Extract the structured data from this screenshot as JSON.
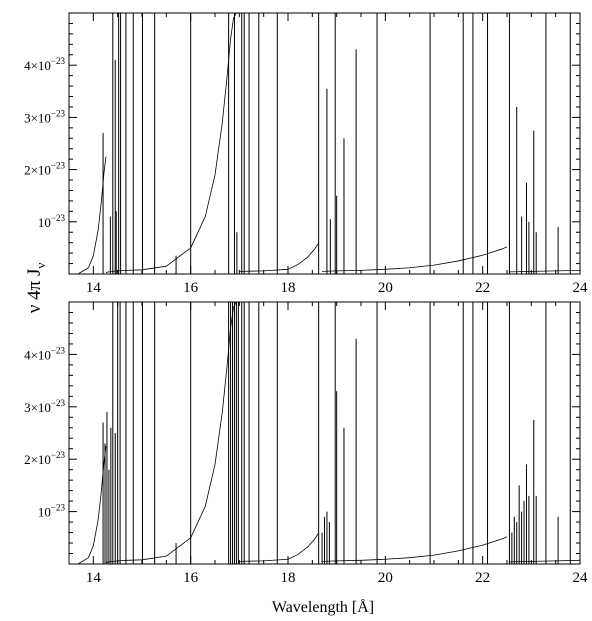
{
  "figure": {
    "ylabel": "ν 4π J",
    "ylabel_sub": "ν",
    "xlabel": "Wavelength [Å]"
  },
  "chart_data": [
    {
      "type": "line",
      "panel": "top",
      "xlabel": "",
      "ylabel": "ν 4π Jν",
      "xlim": [
        13.5,
        24.0
      ],
      "ylim": [
        0,
        5e-23
      ],
      "x_ticks": [
        14,
        16,
        18,
        20,
        22,
        24
      ],
      "x_tick_labels": [
        "14",
        "16",
        "18",
        "20",
        "22",
        "24"
      ],
      "y_ticks": [
        1e-23,
        2e-23,
        3e-23,
        4e-23
      ],
      "y_tick_labels": [
        {
          "mant": "10",
          "exp": "−23"
        },
        {
          "mant": "2×10",
          "exp": "−23"
        },
        {
          "mant": "3×10",
          "exp": "−23"
        },
        {
          "mant": "4×10",
          "exp": "−23"
        }
      ],
      "continuum_segments": [
        {
          "x": [
            13.7,
            13.9,
            14.0,
            14.1,
            14.16,
            14.22,
            14.26
          ],
          "y": [
            1e-25,
            1.2e-24,
            3.5e-24,
            8.5e-24,
            1.35e-23,
            1.95e-23,
            2.25e-23
          ]
        },
        {
          "x": [
            14.26,
            14.32,
            14.4,
            14.5,
            14.7,
            15.0,
            15.5,
            16.0,
            16.3,
            16.5,
            16.65,
            16.75,
            16.82,
            16.88,
            16.94
          ],
          "y": [
            3e-25,
            4e-25,
            5e-25,
            6e-25,
            7e-25,
            8e-25,
            1.5e-24,
            5e-24,
            1.1e-23,
            1.9e-23,
            2.9e-23,
            3.8e-23,
            4.5e-23,
            4.9e-23,
            5e-23
          ]
        },
        {
          "x": [
            17.0,
            17.5,
            18.0,
            18.2,
            18.4,
            18.55,
            18.62
          ],
          "y": [
            5e-25,
            6e-25,
            9e-25,
            1.8e-24,
            3.2e-24,
            4.8e-24,
            5.8e-24
          ]
        },
        {
          "x": [
            18.7,
            19.0,
            19.5,
            20.0,
            20.5,
            21.0,
            21.5,
            22.0,
            22.2,
            22.4,
            22.5
          ],
          "y": [
            5e-25,
            6e-25,
            7e-25,
            9e-25,
            1.2e-24,
            1.7e-24,
            2.5e-24,
            3.6e-24,
            4.2e-24,
            4.8e-24,
            5.2e-24
          ]
        },
        {
          "x": [
            22.55,
            23.0,
            23.5,
            24.0
          ],
          "y": [
            4e-25,
            5e-25,
            6e-25,
            7e-25
          ]
        }
      ],
      "lines": [
        {
          "x": 14.2,
          "y": 2.7e-23
        },
        {
          "x": 14.35,
          "y": 1.1e-23
        },
        {
          "x": 14.4,
          "y": 5e-23
        },
        {
          "x": 14.45,
          "y": 4.1e-23
        },
        {
          "x": 14.47,
          "y": 1.2e-23
        },
        {
          "x": 14.52,
          "y": 5e-23
        },
        {
          "x": 14.56,
          "y": 5e-23
        },
        {
          "x": 14.67,
          "y": 5e-23
        },
        {
          "x": 14.82,
          "y": 5e-23
        },
        {
          "x": 15.01,
          "y": 5e-23
        },
        {
          "x": 15.26,
          "y": 5e-23
        },
        {
          "x": 15.7,
          "y": 3.5e-24
        },
        {
          "x": 16.0,
          "y": 5e-23
        },
        {
          "x": 16.78,
          "y": 5e-23
        },
        {
          "x": 16.9,
          "y": 5e-23
        },
        {
          "x": 16.95,
          "y": 8e-24
        },
        {
          "x": 17.05,
          "y": 5e-23
        },
        {
          "x": 17.1,
          "y": 5e-23
        },
        {
          "x": 17.2,
          "y": 5e-23
        },
        {
          "x": 17.4,
          "y": 5e-23
        },
        {
          "x": 17.78,
          "y": 5e-23
        },
        {
          "x": 18.63,
          "y": 5e-23
        },
        {
          "x": 18.8,
          "y": 3.55e-23
        },
        {
          "x": 18.87,
          "y": 1.05e-23
        },
        {
          "x": 18.97,
          "y": 5e-23
        },
        {
          "x": 19.0,
          "y": 1.5e-23
        },
        {
          "x": 19.15,
          "y": 2.6e-23
        },
        {
          "x": 19.4,
          "y": 4.3e-23
        },
        {
          "x": 19.83,
          "y": 5e-23
        },
        {
          "x": 20.92,
          "y": 5e-23
        },
        {
          "x": 21.6,
          "y": 5e-23
        },
        {
          "x": 21.8,
          "y": 5e-23
        },
        {
          "x": 22.1,
          "y": 5e-23
        },
        {
          "x": 22.55,
          "y": 5e-23
        },
        {
          "x": 22.7,
          "y": 3.2e-23
        },
        {
          "x": 22.8,
          "y": 1.1e-23
        },
        {
          "x": 22.9,
          "y": 1.75e-23
        },
        {
          "x": 22.95,
          "y": 1e-23
        },
        {
          "x": 23.05,
          "y": 2.75e-23
        },
        {
          "x": 23.1,
          "y": 8e-24
        },
        {
          "x": 23.3,
          "y": 5e-23
        },
        {
          "x": 23.55,
          "y": 9e-24
        },
        {
          "x": 23.8,
          "y": 5e-23
        }
      ]
    },
    {
      "type": "line",
      "panel": "bottom",
      "xlabel": "Wavelength [Å]",
      "ylabel": "ν 4π Jν",
      "xlim": [
        13.5,
        24.0
      ],
      "ylim": [
        0,
        5e-23
      ],
      "x_ticks": [
        14,
        16,
        18,
        20,
        22,
        24
      ],
      "x_tick_labels": [
        "14",
        "16",
        "18",
        "20",
        "22",
        "24"
      ],
      "y_ticks": [
        1e-23,
        2e-23,
        3e-23,
        4e-23
      ],
      "y_tick_labels": [
        {
          "mant": "10",
          "exp": "−23"
        },
        {
          "mant": "2×10",
          "exp": "−23"
        },
        {
          "mant": "3×10",
          "exp": "−23"
        },
        {
          "mant": "4×10",
          "exp": "−23"
        }
      ],
      "continuum_segments": [
        {
          "x": [
            13.7,
            13.9,
            14.0,
            14.1,
            14.16,
            14.22,
            14.26
          ],
          "y": [
            1e-25,
            1.2e-24,
            3.5e-24,
            8.5e-24,
            1.35e-23,
            1.95e-23,
            2.25e-23
          ]
        },
        {
          "x": [
            14.26,
            14.32,
            14.4,
            14.5,
            14.7,
            15.0,
            15.5,
            16.0,
            16.3,
            16.5,
            16.65,
            16.75,
            16.82,
            16.88,
            16.94
          ],
          "y": [
            3e-25,
            4e-25,
            5e-25,
            6e-25,
            7e-25,
            8e-25,
            1.5e-24,
            5e-24,
            1.1e-23,
            1.9e-23,
            2.9e-23,
            3.8e-23,
            4.5e-23,
            4.9e-23,
            5e-23
          ]
        },
        {
          "x": [
            17.0,
            17.5,
            18.0,
            18.2,
            18.4,
            18.55,
            18.62
          ],
          "y": [
            5e-25,
            6e-25,
            9e-25,
            1.8e-24,
            3.2e-24,
            4.8e-24,
            5.8e-24
          ]
        },
        {
          "x": [
            18.7,
            19.0,
            19.5,
            20.0,
            20.5,
            21.0,
            21.5,
            22.0,
            22.2,
            22.4,
            22.5
          ],
          "y": [
            5e-25,
            6e-25,
            7e-25,
            9e-25,
            1.2e-24,
            1.7e-24,
            2.5e-24,
            3.6e-24,
            4.2e-24,
            4.8e-24,
            5.2e-24
          ]
        },
        {
          "x": [
            22.55,
            23.0,
            23.5,
            24.0
          ],
          "y": [
            4e-25,
            5e-25,
            6e-25,
            7e-25
          ]
        }
      ],
      "lines": [
        {
          "x": 14.2,
          "y": 2.7e-23
        },
        {
          "x": 14.24,
          "y": 2.3e-23
        },
        {
          "x": 14.28,
          "y": 2.9e-23
        },
        {
          "x": 14.32,
          "y": 1.8e-23
        },
        {
          "x": 14.36,
          "y": 2.6e-23
        },
        {
          "x": 14.4,
          "y": 5e-23
        },
        {
          "x": 14.45,
          "y": 2.5e-23
        },
        {
          "x": 14.5,
          "y": 5e-23
        },
        {
          "x": 14.55,
          "y": 5e-23
        },
        {
          "x": 14.67,
          "y": 5e-23
        },
        {
          "x": 14.82,
          "y": 5e-23
        },
        {
          "x": 15.01,
          "y": 5e-23
        },
        {
          "x": 15.26,
          "y": 5e-23
        },
        {
          "x": 15.7,
          "y": 4e-24
        },
        {
          "x": 16.0,
          "y": 5e-23
        },
        {
          "x": 16.78,
          "y": 5e-23
        },
        {
          "x": 16.82,
          "y": 5e-23
        },
        {
          "x": 16.86,
          "y": 5e-23
        },
        {
          "x": 16.9,
          "y": 5e-23
        },
        {
          "x": 16.94,
          "y": 5e-23
        },
        {
          "x": 16.98,
          "y": 5e-23
        },
        {
          "x": 17.05,
          "y": 5e-23
        },
        {
          "x": 17.1,
          "y": 5e-23
        },
        {
          "x": 17.2,
          "y": 5e-23
        },
        {
          "x": 17.4,
          "y": 5e-23
        },
        {
          "x": 17.78,
          "y": 5e-23
        },
        {
          "x": 18.63,
          "y": 5e-23
        },
        {
          "x": 18.7,
          "y": 6e-24
        },
        {
          "x": 18.75,
          "y": 9e-24
        },
        {
          "x": 18.8,
          "y": 1e-23
        },
        {
          "x": 18.85,
          "y": 8e-24
        },
        {
          "x": 18.97,
          "y": 5e-23
        },
        {
          "x": 19.0,
          "y": 3.3e-23
        },
        {
          "x": 19.15,
          "y": 2.6e-23
        },
        {
          "x": 19.4,
          "y": 4.3e-23
        },
        {
          "x": 19.83,
          "y": 5e-23
        },
        {
          "x": 20.92,
          "y": 5e-23
        },
        {
          "x": 21.6,
          "y": 5e-23
        },
        {
          "x": 21.8,
          "y": 5e-23
        },
        {
          "x": 22.1,
          "y": 5e-23
        },
        {
          "x": 22.55,
          "y": 5e-23
        },
        {
          "x": 22.6,
          "y": 6e-24
        },
        {
          "x": 22.65,
          "y": 9e-24
        },
        {
          "x": 22.7,
          "y": 8e-24
        },
        {
          "x": 22.75,
          "y": 1.5e-23
        },
        {
          "x": 22.8,
          "y": 1e-23
        },
        {
          "x": 22.85,
          "y": 1.2e-23
        },
        {
          "x": 22.9,
          "y": 1.9e-23
        },
        {
          "x": 22.95,
          "y": 1.3e-23
        },
        {
          "x": 23.05,
          "y": 2.75e-23
        },
        {
          "x": 23.1,
          "y": 1.3e-23
        },
        {
          "x": 23.3,
          "y": 5e-23
        },
        {
          "x": 23.55,
          "y": 9e-24
        },
        {
          "x": 23.8,
          "y": 5e-23
        }
      ]
    }
  ]
}
